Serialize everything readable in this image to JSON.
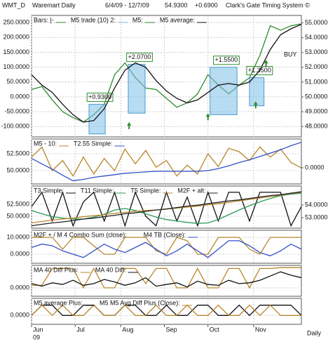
{
  "header": {
    "symbol": "WMT_D",
    "name": "Waremart Daily",
    "range": "6/4/09 - 12/7/09",
    "last": "54.9300",
    "change": "+0.6900",
    "system": "Clark's Gate Timing System ©"
  },
  "x_axis": {
    "x": [
      0,
      5,
      10,
      15,
      20,
      25,
      30,
      35,
      40,
      45,
      50,
      55,
      60,
      65,
      70,
      75,
      80,
      85,
      90,
      95,
      100,
      105,
      110,
      115,
      120,
      125,
      130
    ],
    "xlim": [
      0,
      130
    ],
    "xticks": [
      {
        "value": 0,
        "label": "Jun"
      },
      {
        "value": 21,
        "label": "Jul"
      },
      {
        "value": 43,
        "label": "Aug"
      },
      {
        "value": 64,
        "label": "Sep"
      },
      {
        "value": 85,
        "label": "Oct"
      },
      {
        "value": 107,
        "label": "Nov"
      }
    ],
    "year": "09",
    "period": "Daily"
  },
  "chart_data": [
    {
      "type": "line",
      "grid": true,
      "ylim": [
        -135,
        274
      ],
      "y2lim": [
        47.3,
        55.5
      ],
      "yticks": [
        {
          "value": 250,
          "label": "250.0000"
        },
        {
          "value": 200,
          "label": "200.0000"
        },
        {
          "value": 150,
          "label": "150.0000"
        },
        {
          "value": 100,
          "label": "100.0000"
        },
        {
          "value": 50,
          "label": "50.0000"
        },
        {
          "value": 0,
          "label": "0.0000"
        },
        {
          "value": -50,
          "label": "-50.0000"
        },
        {
          "value": -100,
          "label": "-100.0000"
        }
      ],
      "y2ticks": [
        {
          "value": 55,
          "label": "55.0000"
        },
        {
          "value": 54,
          "label": "54.0000"
        },
        {
          "value": 53,
          "label": "53.0000"
        },
        {
          "value": 52,
          "label": "52.0000"
        },
        {
          "value": 51,
          "label": "51.0000"
        },
        {
          "value": 50,
          "label": "50.0000"
        },
        {
          "value": 49,
          "label": "49.0000"
        },
        {
          "value": 48,
          "label": "48.0000"
        }
      ],
      "signal": "BUY",
      "series": [
        {
          "name": "Bars: |-",
          "color": "#2e8b2e",
          "axis": "y2",
          "values": [
            50.5,
            50.7,
            49.8,
            49.0,
            48.6,
            48.3,
            48.8,
            49.5,
            51.5,
            52.3,
            51.3,
            50.6,
            50.5,
            49.9,
            49.3,
            49.6,
            50.2,
            51.5,
            50.8,
            50.2,
            50.8,
            51.3,
            52.8,
            54.8,
            54.5,
            54.8,
            54.93
          ]
        },
        {
          "name": "M5 trade (10) 2:",
          "color": "#7dbfe8",
          "axis": "y2",
          "trades": [
            {
              "label": "+0.9300",
              "x": [
                27.7,
                35.5
              ],
              "range": [
                47.5,
                49.5
              ]
            },
            {
              "label": "+2.0700",
              "x": [
                46.6,
                54.7
              ],
              "range": [
                48.9,
                52.2
              ]
            },
            {
              "label": "+1.5500",
              "x": [
                86,
                99
              ],
              "range": [
                48.8,
                52.0
              ]
            },
            {
              "label": "+1.3500",
              "x": [
                105,
                112
              ],
              "range": [
                49.4,
                51.3
              ]
            }
          ]
        },
        {
          "name": "M5:",
          "color": "#2e8b2e",
          "axis": "y2",
          "marker": "arrow",
          "x": [
            47,
            85,
            108,
            113
          ],
          "values": [
            48.3,
            48.9,
            49.7,
            52.5
          ]
        },
        {
          "name": "M5 average:",
          "color": "#111111",
          "axis": "y2",
          "values": [
            51.5,
            50.8,
            50.3,
            49.5,
            48.8,
            48.3,
            48.4,
            49.2,
            50.6,
            51.8,
            52.3,
            52.0,
            51.1,
            50.4,
            49.9,
            49.6,
            49.8,
            50.3,
            50.8,
            50.9,
            50.8,
            51.0,
            51.8,
            53.2,
            54.2,
            54.6,
            54.9
          ]
        }
      ]
    },
    {
      "type": "line",
      "grid": true,
      "ylim": [
        48.02,
        54.69
      ],
      "y2lim": [
        -0.36,
        0.64
      ],
      "yticks": [
        {
          "value": 52.5,
          "label": "52.5000"
        },
        {
          "value": 50,
          "label": "50.0000"
        }
      ],
      "y2ticks": [
        {
          "value": 0,
          "label": "0.0000"
        }
      ],
      "series": [
        {
          "name": "M5 - 10:",
          "color": "#b8862b",
          "values": [
            52,
            53.5,
            50,
            51.5,
            49.2,
            52,
            49.5,
            51.8,
            50,
            53.2,
            51,
            53,
            50.5,
            51.5,
            49.2,
            50.8,
            49.5,
            52.5,
            50.6,
            53.3,
            52.8,
            51.5,
            53.5,
            52,
            53.2,
            51.2,
            50.4
          ]
        },
        {
          "name": "T2.55 Simple:",
          "color": "#3050c8",
          "values": [
            51.8,
            51.0,
            50.2,
            49.3,
            48.5,
            48.7,
            49.0,
            49.2,
            49.4,
            49.6,
            49.7,
            49.8,
            49.9,
            49.9,
            49.9,
            49.9,
            49.9,
            50.0,
            50.3,
            50.7,
            51.2,
            51.6,
            52.1,
            52.6,
            53.1,
            53.7,
            54.2
          ]
        }
      ]
    },
    {
      "type": "line",
      "grid": true,
      "ylim": [
        47.5,
        56.3
      ],
      "y2lim": [
        52.17,
        55.5
      ],
      "yticks": [
        {
          "value": 52.5,
          "label": "52.5000"
        },
        {
          "value": 50,
          "label": "50.0000"
        }
      ],
      "y2ticks": [
        {
          "value": 54,
          "label": "54.0000"
        },
        {
          "value": 53,
          "label": "53.0000"
        }
      ],
      "series": [
        {
          "name": "T3 Simple:",
          "color": "#111111",
          "values": [
            52,
            55,
            49,
            55,
            48,
            53,
            55,
            49,
            55,
            48,
            55,
            50,
            48,
            55,
            49,
            54,
            48,
            55,
            49,
            55,
            55,
            49,
            55,
            55,
            55,
            48,
            52
          ]
        },
        {
          "name": "T11 Simple:",
          "color": "#2a9a5a",
          "values": [
            51.2,
            50.5,
            49.9,
            49.6,
            49.4,
            49.4,
            49.8,
            50.4,
            51.3,
            51.6,
            51.2,
            50.5,
            49.8,
            49.3,
            49.0,
            48.7,
            48.5,
            48.6,
            49.3,
            50.3,
            51.3,
            52.2,
            53.0,
            53.7,
            54.3,
            54.6,
            54.8
          ]
        },
        {
          "name": "T5 Simple:",
          "color": "#b8862b",
          "values": [
            48.6,
            48.9,
            49.2,
            49.4,
            49.6,
            49.9,
            50.1,
            50.3,
            50.6,
            50.8,
            51.0,
            51.2,
            51.3,
            51.5,
            51.7,
            51.9,
            52.1,
            52.4,
            52.6,
            52.9,
            53.2,
            53.5,
            53.8,
            54.1,
            54.4,
            54.7,
            55.0
          ]
        },
        {
          "name": "M2F + alt:",
          "color": "#222222",
          "values": [
            48.0,
            48.3,
            48.6,
            48.8,
            49.1,
            49.4,
            49.6,
            49.9,
            50.2,
            50.5,
            50.7,
            51.0,
            51.3,
            51.5,
            51.8,
            52.1,
            52.3,
            52.6,
            52.9,
            53.2,
            53.4,
            53.7,
            54.0,
            54.3,
            54.5,
            54.8,
            55.1
          ]
        }
      ]
    },
    {
      "type": "line",
      "grid": true,
      "ylim": [
        -5.4,
        14.2
      ],
      "yticks": [
        {
          "value": 10,
          "label": "10.0000"
        },
        {
          "value": 0,
          "label": "0.0000"
        }
      ],
      "series": [
        {
          "name": "M2F + / M 4 Combo Sum (close):",
          "color": "#b8862b",
          "values": [
            10,
            10,
            10,
            3,
            10,
            10,
            5,
            0,
            0,
            10,
            10,
            10,
            2,
            0,
            10,
            8,
            0,
            0,
            10,
            10,
            10,
            3,
            0,
            10,
            10,
            10,
            10
          ]
        },
        {
          "name": "M4 TB (Close):",
          "color": "#3050c8",
          "values": [
            4,
            6,
            5,
            2,
            0,
            -2,
            2,
            6,
            3,
            1,
            4,
            7,
            3,
            -1,
            2,
            6,
            2,
            -2,
            3,
            8,
            8,
            5,
            1,
            -1,
            2,
            6,
            3
          ]
        }
      ]
    },
    {
      "type": "line",
      "grid": true,
      "ylim": [
        -1,
        2.67
      ],
      "yticks": [
        {
          "value": 0,
          "label": "0.0000"
        }
      ],
      "series": [
        {
          "name": "MA 40 Diff Plus:",
          "color": "#b8862b",
          "values": [
            0.3,
            0.3,
            2.3,
            2.3,
            2.3,
            0,
            2.3,
            0,
            0,
            2.3,
            2.3,
            0.5,
            2.3,
            2.3,
            0,
            0,
            2.3,
            0,
            0,
            2.3,
            2.3,
            0,
            2.3,
            2.3,
            2.4,
            2.4,
            2.4
          ]
        },
        {
          "name": "MA 40 Diff:",
          "color": "#111111",
          "values": [
            0.5,
            0.2,
            0.6,
            0.4,
            0.9,
            0.3,
            0.5,
            1.0,
            0.7,
            0.3,
            0.6,
            1.2,
            0.2,
            0.4,
            0.6,
            0.1,
            0.8,
            0.4,
            0.3,
            0.9,
            0.5,
            0.6,
            0.9,
            1.4,
            1.9,
            1.5,
            1.2
          ]
        }
      ]
    },
    {
      "type": "line",
      "grid": true,
      "ylim": [
        -0.52,
        1
      ],
      "yticks": [
        {
          "value": 0,
          "label": "0.0000"
        }
      ],
      "series": [
        {
          "name": "M5 average Plus:",
          "color": "#111111",
          "values": [
            0,
            0.6,
            0.6,
            0,
            0,
            0.6,
            0.6,
            0,
            0,
            0.6,
            0.6,
            0,
            0,
            0.6,
            0,
            0,
            0.6,
            0.6,
            0,
            0,
            0.6,
            0,
            0.6,
            0.6,
            0.6,
            0.6,
            0
          ]
        },
        {
          "name": "M5 M5 Avg Diff Plus (Close):",
          "color": "#b8862b",
          "values": [
            0,
            0.6,
            0,
            0.6,
            0,
            0,
            0.6,
            0,
            0,
            0.6,
            0,
            0,
            0.6,
            0,
            0,
            0.6,
            0,
            0,
            0.6,
            0,
            0,
            0.6,
            0,
            0.6,
            0,
            0,
            0
          ]
        }
      ]
    }
  ]
}
